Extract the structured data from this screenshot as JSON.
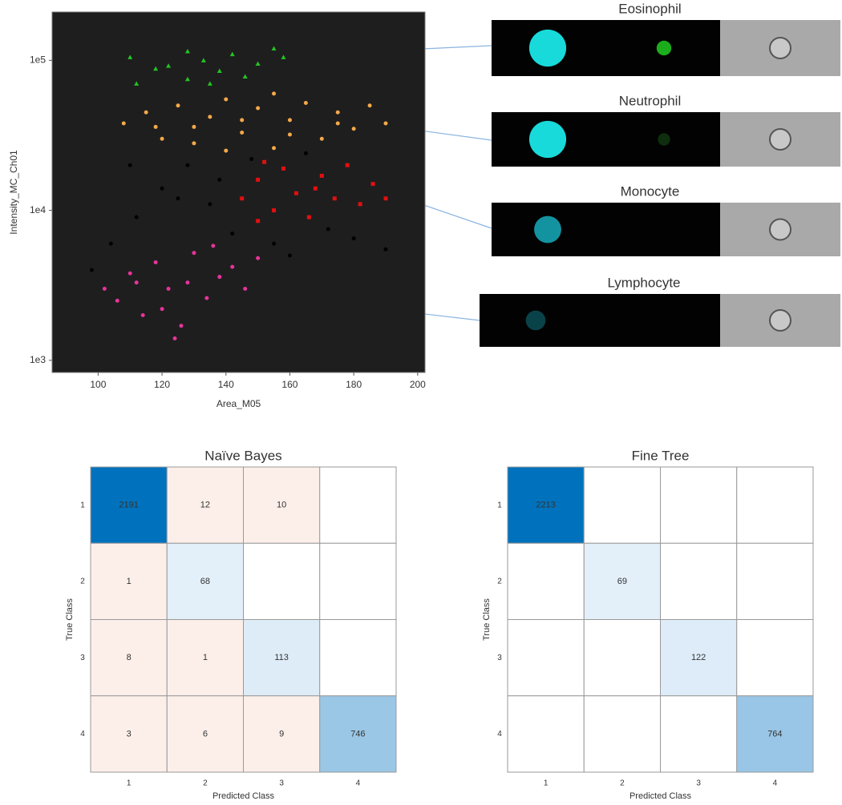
{
  "chart_data": [
    {
      "type": "scatter",
      "xlabel": "Area_M05",
      "ylabel": "Intensity_MC_Ch01",
      "log_y": true,
      "background": "#1e1e1e",
      "xlim": [
        85.6,
        202.3
      ],
      "xticks": [
        100,
        120,
        140,
        160,
        180,
        200
      ],
      "ylim": [
        830,
        210000
      ],
      "yticks": [
        {
          "value": 1000,
          "label": "1e3"
        },
        {
          "value": 10000,
          "label": "1e4"
        },
        {
          "value": 100000,
          "label": "1e5"
        }
      ],
      "series": [
        {
          "color": "#000000",
          "marker": "circle",
          "x": [
            98,
            104,
            112,
            120,
            128,
            135,
            142,
            148,
            155,
            160,
            172,
            180,
            190,
            110,
            125,
            165,
            138
          ],
          "values": [
            4000,
            6000,
            9000,
            14000,
            20000,
            11000,
            7000,
            22000,
            6000,
            5000,
            7500,
            6500,
            5500,
            20000,
            12000,
            24000,
            16000
          ]
        },
        {
          "color": "#22c422",
          "marker": "triangle",
          "x": [
            112,
            118,
            122,
            128,
            133,
            138,
            142,
            146,
            150,
            155,
            158,
            128,
            135,
            110
          ],
          "values": [
            70000,
            88000,
            92000,
            75000,
            100000,
            85000,
            110000,
            78000,
            95000,
            120000,
            105000,
            115000,
            70000,
            105000
          ]
        },
        {
          "color": "#f5a94a",
          "marker": "circle",
          "x": [
            108,
            115,
            120,
            125,
            130,
            135,
            140,
            145,
            150,
            155,
            160,
            165,
            170,
            175,
            180,
            185,
            190,
            130,
            145,
            160,
            175,
            155,
            140,
            118
          ],
          "values": [
            38000,
            45000,
            30000,
            50000,
            28000,
            42000,
            55000,
            33000,
            48000,
            26000,
            40000,
            52000,
            30000,
            45000,
            35000,
            50000,
            38000,
            36000,
            40000,
            32000,
            38000,
            60000,
            25000,
            36000
          ]
        },
        {
          "color": "#e01010",
          "marker": "square",
          "x": [
            145,
            150,
            155,
            158,
            162,
            166,
            170,
            174,
            178,
            182,
            186,
            190,
            152,
            168,
            150
          ],
          "values": [
            12000,
            16000,
            10000,
            19000,
            13000,
            9000,
            17000,
            12000,
            20000,
            11000,
            15000,
            12000,
            21000,
            14000,
            8500
          ]
        },
        {
          "color": "#e8339a",
          "marker": "circle",
          "x": [
            102,
            106,
            110,
            114,
            118,
            122,
            126,
            130,
            134,
            138,
            142,
            146,
            150,
            120,
            128,
            136,
            112,
            124
          ],
          "values": [
            3000,
            2500,
            3800,
            2000,
            4500,
            3000,
            1700,
            5200,
            2600,
            3600,
            4200,
            3000,
            4800,
            2200,
            3300,
            5800,
            3300,
            1400
          ]
        }
      ]
    },
    {
      "type": "heatmap",
      "title": "Naïve Bayes",
      "xlabel": "Predicted Class",
      "ylabel": "True Class",
      "x_categories": [
        1,
        2,
        3,
        4
      ],
      "y_categories": [
        1,
        2,
        3,
        4
      ],
      "diagonal_color": "#0072bd",
      "off_diagonal_color": "#fcefea",
      "values": [
        [
          2191,
          12,
          10,
          null
        ],
        [
          1,
          68,
          null,
          null
        ],
        [
          8,
          1,
          113,
          null
        ],
        [
          3,
          6,
          9,
          746
        ]
      ]
    },
    {
      "type": "heatmap",
      "title": "Fine Tree",
      "xlabel": "Predicted Class",
      "ylabel": "True Class",
      "x_categories": [
        1,
        2,
        3,
        4
      ],
      "y_categories": [
        1,
        2,
        3,
        4
      ],
      "diagonal_color": "#0072bd",
      "off_diagonal_color": "#fcefea",
      "values": [
        [
          2213,
          null,
          null,
          null
        ],
        [
          null,
          69,
          null,
          null
        ],
        [
          null,
          null,
          122,
          null
        ],
        [
          null,
          null,
          null,
          764
        ]
      ]
    }
  ],
  "cell_images": [
    {
      "label": "Eosinophil"
    },
    {
      "label": "Neutrophil"
    },
    {
      "label": "Monocyte"
    },
    {
      "label": "Lymphocyte"
    }
  ]
}
